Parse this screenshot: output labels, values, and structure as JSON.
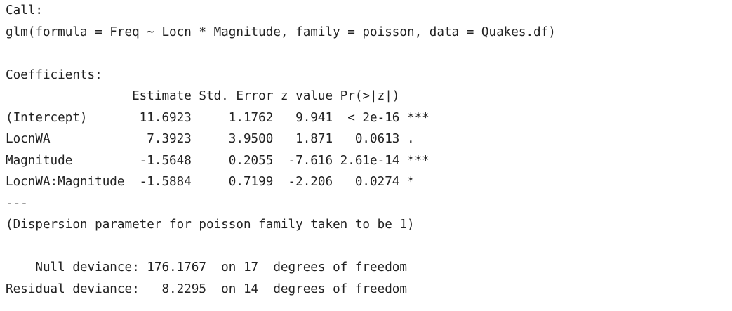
{
  "output": {
    "lines": [
      "Call:",
      "glm(formula = Freq ~ Locn * Magnitude, family = poisson, data = Quakes.df)",
      "",
      "Coefficients:",
      "                 Estimate Std. Error z value Pr(>|z|)",
      "(Intercept)       11.6923     1.1762   9.941  < 2e-16 ***",
      "LocnWA             7.3923     3.9500   1.871   0.0613 .",
      "Magnitude         -1.5648     0.2055  -7.616 2.61e-14 ***",
      "LocnWA:Magnitude  -1.5884     0.7199  -2.206   0.0274 *",
      "---",
      "(Dispersion parameter for poisson family taken to be 1)",
      "",
      "    Null deviance: 176.1767  on 17  degrees of freedom",
      "Residual deviance:   8.2295  on 14  degrees of freedom"
    ]
  }
}
